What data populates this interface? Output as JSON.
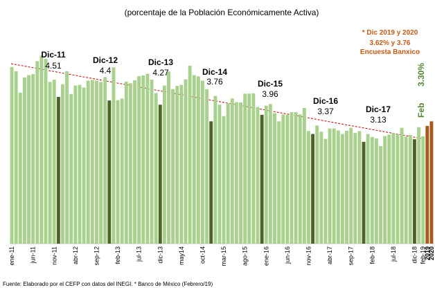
{
  "chart_data": {
    "type": "bar",
    "subtitle": "(porcentaje de la Población Económicamente Activa)",
    "source": "Fuente: Elaborado por el CEFP con datos del INEGI. * Banco de México (Febrero/19)",
    "categories": [
      "ene-11",
      null,
      null,
      null,
      null,
      "jun-11",
      null,
      null,
      null,
      null,
      "nov-11",
      null,
      null,
      null,
      null,
      "abr-12",
      null,
      null,
      null,
      null,
      "sep-12",
      null,
      null,
      null,
      null,
      "feb-13",
      null,
      null,
      null,
      null,
      "jul-13",
      null,
      null,
      null,
      null,
      "dic-13",
      null,
      null,
      null,
      null,
      "may14",
      null,
      null,
      null,
      null,
      "oct-14",
      null,
      null,
      null,
      null,
      "mar-15",
      null,
      null,
      null,
      null,
      "ago-15",
      null,
      null,
      null,
      null,
      "ene-16",
      null,
      null,
      null,
      null,
      "jun-16",
      null,
      null,
      null,
      null,
      "nov-16",
      null,
      null,
      null,
      null,
      "abr-17",
      null,
      null,
      null,
      null,
      "sep-17",
      null,
      null,
      null,
      null,
      "feb-18",
      null,
      null,
      null,
      null,
      "jul-18",
      null,
      null,
      null,
      null,
      "dic-18",
      null,
      "feb-19",
      "2019",
      "2020"
    ],
    "values": [
      5.43,
      5.3,
      4.64,
      5.11,
      5.18,
      5.21,
      5.61,
      5.78,
      5.68,
      4.97,
      5.04,
      4.51,
      4.9,
      5.3,
      4.6,
      4.86,
      4.88,
      4.8,
      5.01,
      5.03,
      5.01,
      4.97,
      5.12,
      4.4,
      5.42,
      4.41,
      4.46,
      4.98,
      4.93,
      5.02,
      5.15,
      5.17,
      5.22,
      5.04,
      4.63,
      4.27,
      4.86,
      5.29,
      4.75,
      4.85,
      4.88,
      5.05,
      5.47,
      5.18,
      5.14,
      5.01,
      4.75,
      3.76,
      4.54,
      4.27,
      3.92,
      4.32,
      4.46,
      4.35,
      4.34,
      4.61,
      4.61,
      4.62,
      4.2,
      3.96,
      4.24,
      4.29,
      4.01,
      3.76,
      3.97,
      3.96,
      4.04,
      4.04,
      3.97,
      4.17,
      3.46,
      3.37,
      3.63,
      3.44,
      3.22,
      3.54,
      3.54,
      3.48,
      3.37,
      3.47,
      3.56,
      3.4,
      3.46,
      3.13,
      3.37,
      3.28,
      3.23,
      3.0,
      3.31,
      3.35,
      3.4,
      3.37,
      3.56,
      3.29,
      3.34,
      3.21,
      3.58,
      3.3,
      3.62,
      3.76
    ],
    "colors": [
      "#a9d18e",
      "#a9d18e",
      "#a9d18e",
      "#a9d18e",
      "#a9d18e",
      "#a9d18e",
      "#a9d18e",
      "#a9d18e",
      "#a9d18e",
      "#a9d18e",
      "#a9d18e",
      "#4f6228",
      "#a9d18e",
      "#a9d18e",
      "#a9d18e",
      "#a9d18e",
      "#a9d18e",
      "#a9d18e",
      "#a9d18e",
      "#a9d18e",
      "#a9d18e",
      "#a9d18e",
      "#a9d18e",
      "#4f6228",
      "#a9d18e",
      "#a9d18e",
      "#a9d18e",
      "#a9d18e",
      "#a9d18e",
      "#a9d18e",
      "#a9d18e",
      "#a9d18e",
      "#a9d18e",
      "#a9d18e",
      "#a9d18e",
      "#4f6228",
      "#a9d18e",
      "#a9d18e",
      "#a9d18e",
      "#a9d18e",
      "#a9d18e",
      "#a9d18e",
      "#a9d18e",
      "#a9d18e",
      "#a9d18e",
      "#a9d18e",
      "#a9d18e",
      "#4f6228",
      "#a9d18e",
      "#a9d18e",
      "#a9d18e",
      "#a9d18e",
      "#a9d18e",
      "#a9d18e",
      "#a9d18e",
      "#a9d18e",
      "#a9d18e",
      "#a9d18e",
      "#a9d18e",
      "#4f6228",
      "#a9d18e",
      "#a9d18e",
      "#a9d18e",
      "#a9d18e",
      "#a9d18e",
      "#a9d18e",
      "#a9d18e",
      "#a9d18e",
      "#a9d18e",
      "#a9d18e",
      "#a9d18e",
      "#4f6228",
      "#a9d18e",
      "#a9d18e",
      "#a9d18e",
      "#a9d18e",
      "#a9d18e",
      "#a9d18e",
      "#a9d18e",
      "#a9d18e",
      "#a9d18e",
      "#a9d18e",
      "#a9d18e",
      "#4f6228",
      "#a9d18e",
      "#a9d18e",
      "#a9d18e",
      "#a9d18e",
      "#a9d18e",
      "#a9d18e",
      "#a9d18e",
      "#a9d18e",
      "#a9d18e",
      "#a9d18e",
      "#a9d18e",
      "#4f6228",
      "#a9d18e",
      "#a9d18e",
      "#a5591b",
      "#a5591b"
    ],
    "ylim": [
      0,
      6
    ],
    "annotations": [
      {
        "text": "Dic-11",
        "value": 4.51
      },
      {
        "text": "Dic-12",
        "value": 4.4
      },
      {
        "text": "Dic-13",
        "value": 4.27
      },
      {
        "text": "Dic-14",
        "value": 3.76
      },
      {
        "text": "Dic-15",
        "value": 3.96
      },
      {
        "text": "Dic-16",
        "value": 3.37
      },
      {
        "text": "Dic-17",
        "value": 3.13
      }
    ],
    "feb_note": {
      "text": "Feb",
      "value": 3.3,
      "value_label": "3.30%"
    },
    "forecast_note": [
      "* Dic 2019 y 2020",
      "3.62% y 3.76",
      "Encuesta Banxico"
    ]
  }
}
